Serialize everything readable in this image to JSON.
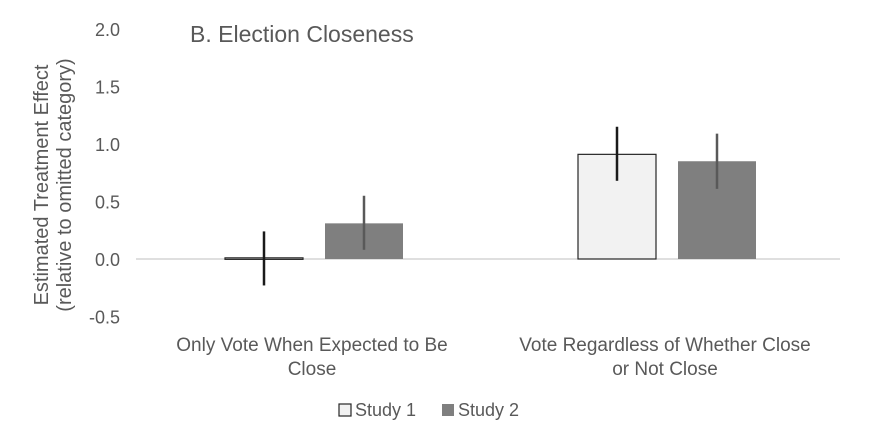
{
  "chart_data": {
    "type": "bar",
    "title": "B. Election Closeness",
    "ylabel_line1": "Estimated Treatment Effect",
    "ylabel_line2": "(relative to omitted category)",
    "ylim": [
      -0.5,
      2.0
    ],
    "yticks": [
      "2.0",
      "1.5",
      "1.0",
      "0.5",
      "0.0",
      "-0.5"
    ],
    "ytick_values": [
      2.0,
      1.5,
      1.0,
      0.5,
      0.0,
      -0.5
    ],
    "grid": false,
    "legend_position": "bottom",
    "categories": [
      [
        "Only Vote When Expected to Be",
        "Close"
      ],
      [
        "Vote Regardless of Whether Close",
        "or Not Close"
      ]
    ],
    "series": [
      {
        "name": "Study 1",
        "values": [
          0.01,
          0.91
        ],
        "err_low": [
          -0.23,
          0.68
        ],
        "err_high": [
          0.24,
          1.15
        ],
        "fill": "#f2f2f2",
        "stroke": "#262626",
        "err_color": "#1a1a1a"
      },
      {
        "name": "Study 2",
        "values": [
          0.31,
          0.85
        ],
        "err_low": [
          0.08,
          0.61
        ],
        "err_high": [
          0.55,
          1.09
        ],
        "fill": "#7f7f7f",
        "stroke": "none",
        "err_color": "#595959"
      }
    ]
  }
}
